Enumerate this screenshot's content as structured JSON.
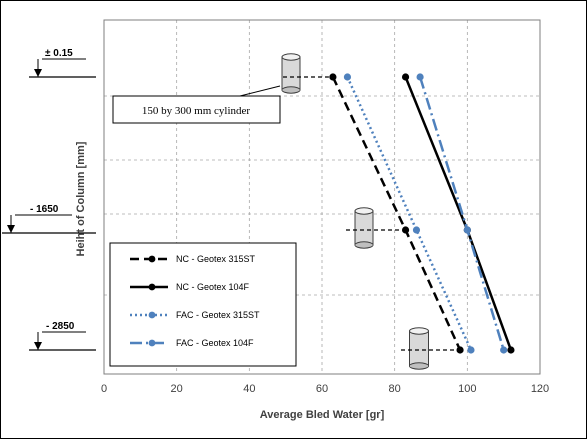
{
  "chart_data": {
    "type": "line",
    "title": "",
    "xlabel": "Average Bled Water [gr]",
    "ylabel": "Heiht of Column [mm]",
    "xlim": [
      0,
      120
    ],
    "x_ticks": [
      0,
      20,
      40,
      60,
      80,
      100,
      120
    ],
    "y_categories": [
      "± 0.15",
      "- 1650",
      "- 2850"
    ],
    "grid": true,
    "legend_position": "bottom-left",
    "series": [
      {
        "name": "NC - Geotex 315ST",
        "style": "dashed",
        "color": "#000000",
        "x": [
          63,
          83,
          98
        ]
      },
      {
        "name": "NC - Geotex 104F",
        "style": "solid",
        "color": "#000000",
        "x": [
          83,
          100,
          112
        ]
      },
      {
        "name": "FAC - Geotex 315ST",
        "style": "dotted",
        "color": "#4f81bd",
        "x": [
          67,
          86,
          101
        ]
      },
      {
        "name": "FAC - Geotex 104F",
        "style": "dashdot",
        "color": "#4f81bd",
        "x": [
          87,
          100,
          110
        ]
      }
    ],
    "annotation": "150 by 300 mm cylinder"
  }
}
